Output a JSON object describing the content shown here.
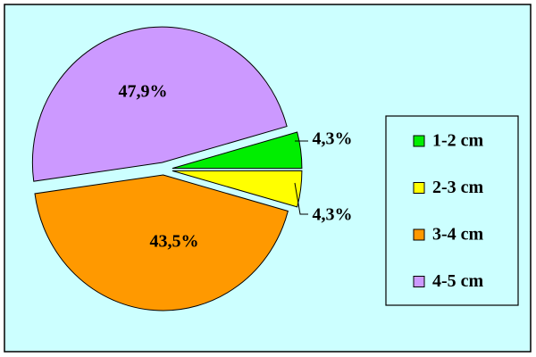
{
  "chart_data": {
    "type": "pie",
    "categories": [
      "1-2 cm",
      "2-3 cm",
      "3-4 cm",
      "4-5 cm"
    ],
    "values": [
      4.3,
      4.3,
      43.5,
      47.9
    ],
    "value_labels": [
      "4,3%",
      "4,3%",
      "43,5%",
      "47,9%"
    ],
    "colors": [
      "#00ee00",
      "#ffff00",
      "#ff9900",
      "#cc99ff"
    ],
    "legend": "right"
  }
}
